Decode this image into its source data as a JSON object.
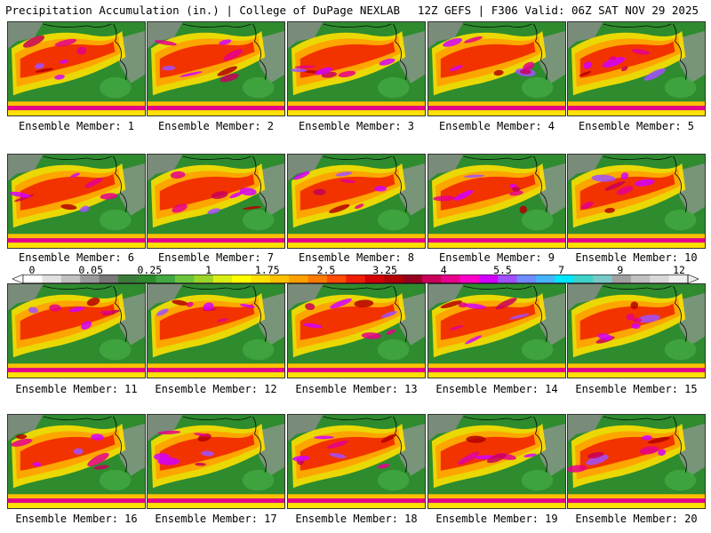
{
  "header": {
    "left_title": "Precipitation Accumulation (in.) | College of DuPage NEXLAB",
    "right_title": "12Z GEFS | F306 Valid: 06Z SAT NOV 29 2025"
  },
  "members": [
    {
      "label": "Ensemble Member: 1"
    },
    {
      "label": "Ensemble Member: 2"
    },
    {
      "label": "Ensemble Member: 3"
    },
    {
      "label": "Ensemble Member: 4"
    },
    {
      "label": "Ensemble Member: 5"
    },
    {
      "label": "Ensemble Member: 6"
    },
    {
      "label": "Ensemble Member: 7"
    },
    {
      "label": "Ensemble Member: 8"
    },
    {
      "label": "Ensemble Member: 9"
    },
    {
      "label": "Ensemble Member: 10"
    },
    {
      "label": "Ensemble Member: 11"
    },
    {
      "label": "Ensemble Member: 12"
    },
    {
      "label": "Ensemble Member: 13"
    },
    {
      "label": "Ensemble Member: 14"
    },
    {
      "label": "Ensemble Member: 15"
    },
    {
      "label": "Ensemble Member: 16"
    },
    {
      "label": "Ensemble Member: 17"
    },
    {
      "label": "Ensemble Member: 18"
    },
    {
      "label": "Ensemble Member: 19"
    },
    {
      "label": "Ensemble Member: 20"
    }
  ],
  "colorbar": {
    "tick_labels": [
      "0",
      "0.05",
      "0.25",
      "1",
      "1.75",
      "2.5",
      "3.25",
      "4",
      "5.5",
      "7",
      "9",
      "12"
    ],
    "colors": [
      "#ffffff",
      "#e0e0e0",
      "#c0c0c0",
      "#9a9a9a",
      "#787878",
      "#3c7a3c",
      "#2e8b2e",
      "#42a842",
      "#6cc43c",
      "#9ad428",
      "#d8ee14",
      "#ffff00",
      "#ffe000",
      "#ffc000",
      "#ffa000",
      "#ff7a00",
      "#ff4c00",
      "#f01e00",
      "#d20000",
      "#b40000",
      "#96001e",
      "#c8005a",
      "#e6008c",
      "#ff00c8",
      "#d200ff",
      "#a050ff",
      "#6e8cff",
      "#46b4ff",
      "#00e6ff",
      "#40d2c8",
      "#78c8c8",
      "#a0a0a0",
      "#c0c0c0",
      "#d8d8d8",
      "#eeeeee"
    ]
  }
}
